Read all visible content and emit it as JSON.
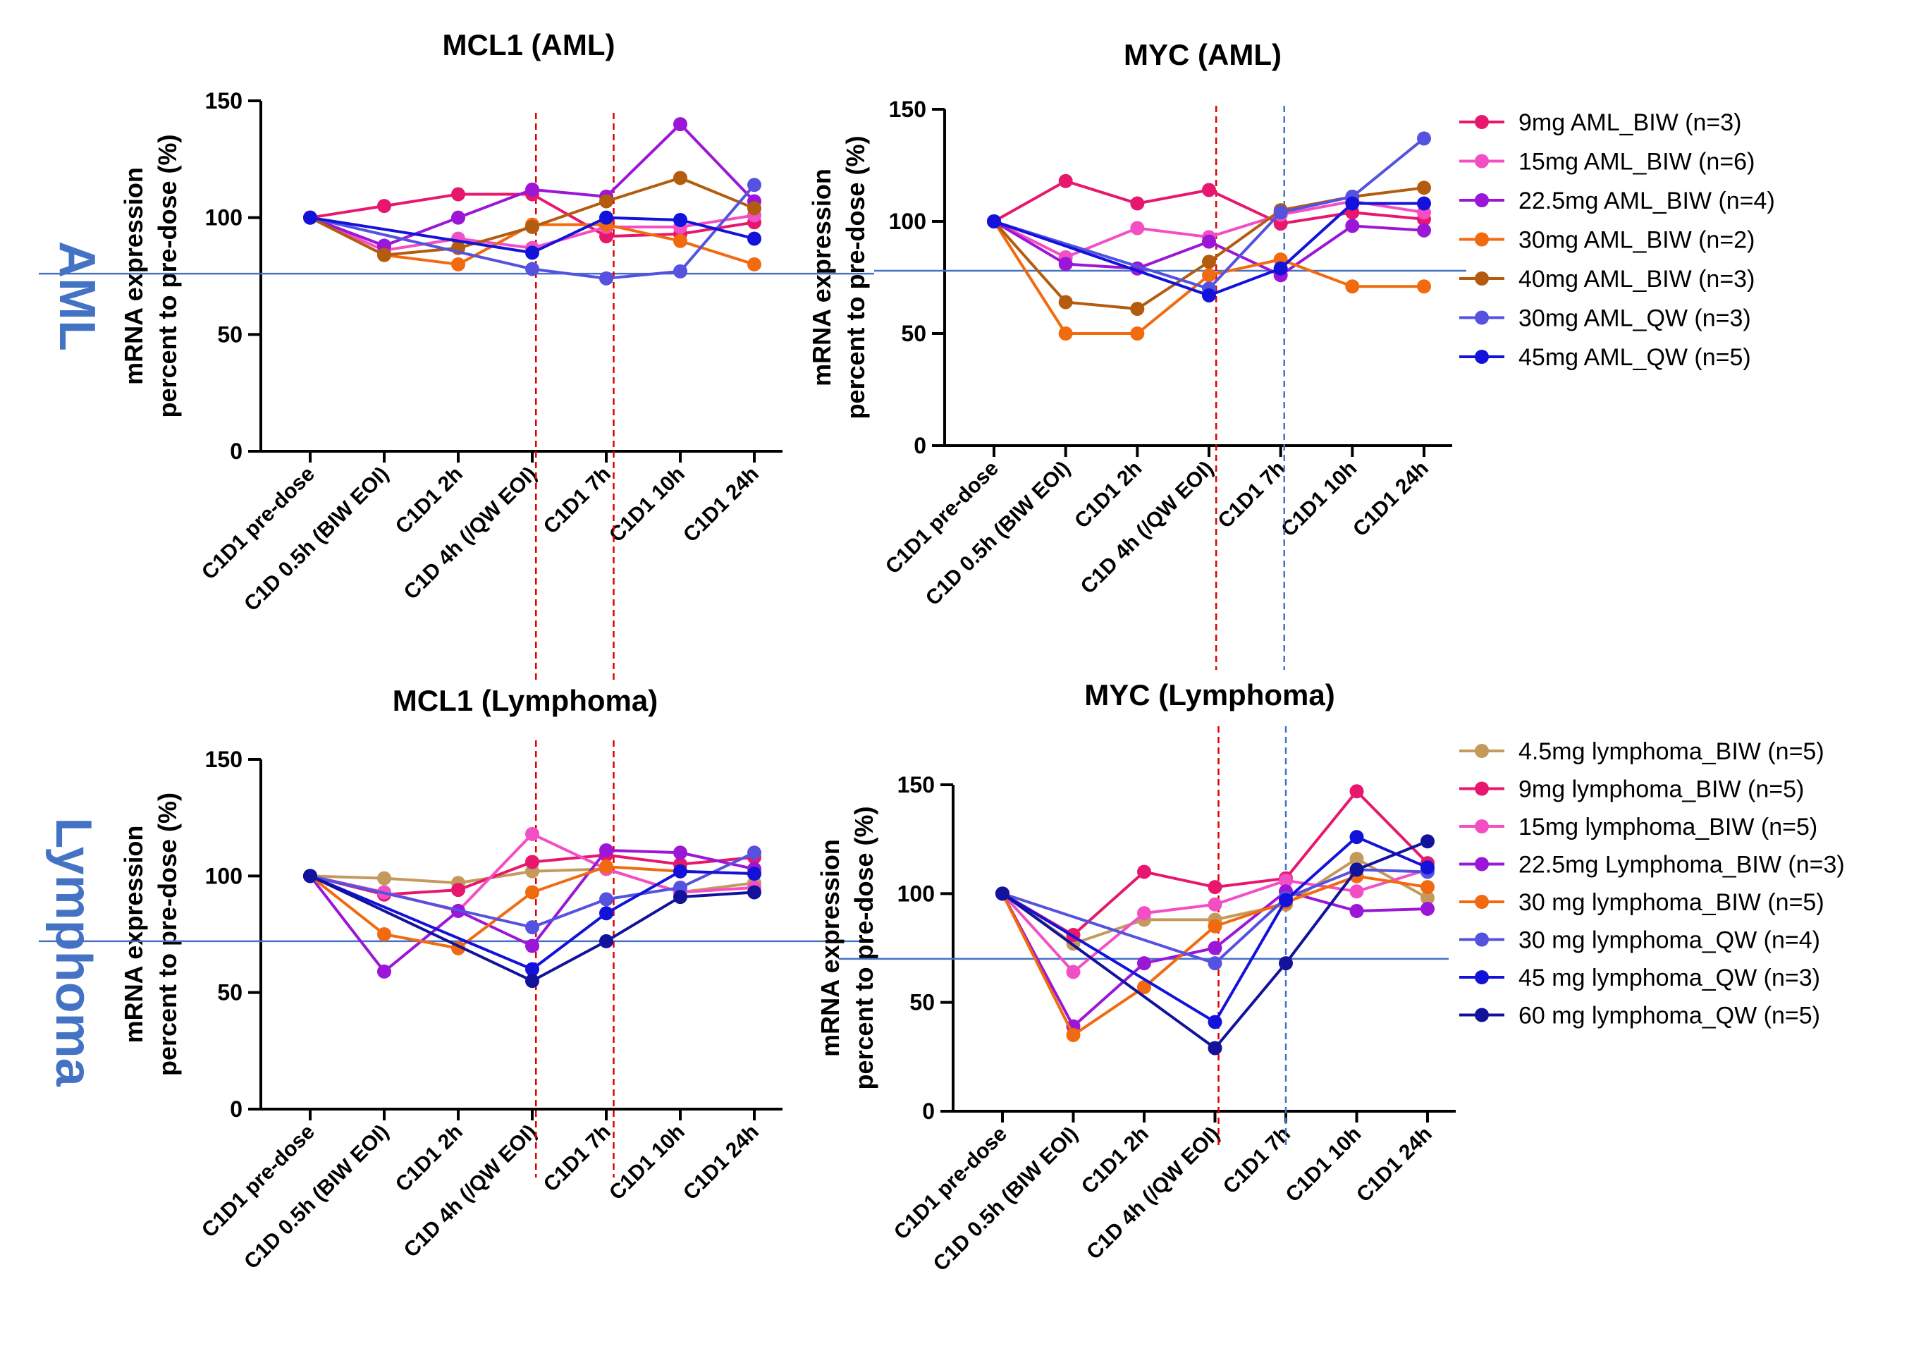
{
  "side_labels": {
    "top": "AML",
    "bottom": "Lymphoma"
  },
  "legend_aml": [
    {
      "name": "9mg AML_BIW (n=3)",
      "color": "#E8176E"
    },
    {
      "name": "15mg AML_BIW (n=6)",
      "color": "#F24FC4"
    },
    {
      "name": "22.5mg AML_BIW (n=4)",
      "color": "#9B16D6"
    },
    {
      "name": "30mg AML_BIW (n=2)",
      "color": "#F26A0F"
    },
    {
      "name": "40mg AML_BIW (n=3)",
      "color": "#B35C0F"
    },
    {
      "name": "30mg AML_QW (n=3)",
      "color": "#5552E0"
    },
    {
      "name": "45mg AML_QW (n=5)",
      "color": "#1212DB"
    }
  ],
  "legend_lymphoma": [
    {
      "name": "4.5mg lymphoma_BIW  (n=5)",
      "color": "#C49A5C"
    },
    {
      "name": "9mg lymphoma_BIW  (n=5)",
      "color": "#E8176E"
    },
    {
      "name": "15mg lymphoma_BIW   (n=5)",
      "color": "#F24FC4"
    },
    {
      "name": "22.5mg Lymphoma_BIW (n=3)",
      "color": "#9B16D6"
    },
    {
      "name": "30 mg lymphoma_BIW  (n=5)",
      "color": "#F26A0F"
    },
    {
      "name": "30 mg lymphoma_QW (n=4)",
      "color": "#5552E0"
    },
    {
      "name": "45 mg lymphoma_QW (n=3)",
      "color": "#1212DB"
    },
    {
      "name": "60 mg lymphoma_QW (n=5)",
      "color": "#12129A"
    }
  ],
  "chart_data": [
    {
      "type": "line",
      "title": "MCL1 (AML)",
      "ylabel_line1": "mRNA expression",
      "ylabel_line2": "percent to pre-dose (%)",
      "ylim": [
        0,
        150
      ],
      "yticks": [
        0,
        50,
        100,
        150
      ],
      "categories": [
        "C1D1 pre-dose",
        "C1D 0.5h (BIW EOI)",
        "C1D1 2h",
        "C1D 4h (/QW EOI)",
        "C1D1 7h",
        "C1D1 10h",
        "C1D1 24h"
      ],
      "reference_hline": 76,
      "vlines": [
        {
          "at": 3.05,
          "color": "#E00000"
        },
        {
          "at": 4.1,
          "color": "#E00000"
        }
      ],
      "series": [
        {
          "name": "9mg AML_BIW (n=3)",
          "color": "#E8176E",
          "values": [
            100,
            105,
            110,
            110,
            92,
            93,
            98
          ]
        },
        {
          "name": "15mg AML_BIW (n=6)",
          "color": "#F24FC4",
          "values": [
            100,
            86,
            91,
            87,
            96,
            96,
            101
          ]
        },
        {
          "name": "22.5mg AML_BIW (n=4)",
          "color": "#9B16D6",
          "values": [
            100,
            88,
            100,
            112,
            109,
            140,
            107
          ]
        },
        {
          "name": "30mg AML_BIW (n=2)",
          "color": "#F26A0F",
          "values": [
            100,
            84,
            80,
            97,
            97,
            90,
            80
          ]
        },
        {
          "name": "40mg AML_BIW (n=3)",
          "color": "#B35C0F",
          "values": [
            100,
            84,
            87,
            96,
            107,
            117,
            104
          ]
        },
        {
          "name": "30mg AML_QW (n=3)",
          "color": "#5552E0",
          "values": [
            100,
            null,
            null,
            78,
            74,
            77,
            114
          ]
        },
        {
          "name": "45mg AML_QW (n=5)",
          "color": "#1212DB",
          "values": [
            100,
            null,
            null,
            85,
            100,
            99,
            91
          ]
        }
      ]
    },
    {
      "type": "line",
      "title": "MYC (AML)",
      "ylabel_line1": "mRNA expression",
      "ylabel_line2": "percent to pre-dose (%)",
      "ylim": [
        0,
        150
      ],
      "yticks": [
        0,
        50,
        100,
        150
      ],
      "categories": [
        "C1D1 pre-dose",
        "C1D 0.5h (BIW EOI)",
        "C1D1 2h",
        "C1D 4h (/QW EOI)",
        "C1D1 7h",
        "C1D1 10h",
        "C1D1 24h"
      ],
      "reference_hline": 78,
      "vlines": [
        {
          "at": 3.1,
          "color": "#E00000"
        },
        {
          "at": 4.05,
          "color": "#4472C4"
        }
      ],
      "series": [
        {
          "name": "9mg AML_BIW (n=3)",
          "color": "#E8176E",
          "values": [
            100,
            118,
            108,
            114,
            99,
            104,
            101
          ]
        },
        {
          "name": "15mg AML_BIW (n=6)",
          "color": "#F24FC4",
          "values": [
            100,
            84,
            97,
            93,
            103,
            109,
            104
          ]
        },
        {
          "name": "22.5mg AML_BIW (n=4)",
          "color": "#9B16D6",
          "values": [
            100,
            81,
            79,
            91,
            76,
            98,
            96
          ]
        },
        {
          "name": "30mg AML_BIW (n=2)",
          "color": "#F26A0F",
          "values": [
            100,
            50,
            50,
            76,
            83,
            71,
            71
          ]
        },
        {
          "name": "40mg AML_BIW (n=3)",
          "color": "#B35C0F",
          "values": [
            100,
            64,
            61,
            82,
            105,
            111,
            115
          ]
        },
        {
          "name": "30mg AML_QW (n=3)",
          "color": "#5552E0",
          "values": [
            100,
            null,
            null,
            70,
            104,
            111,
            137
          ]
        },
        {
          "name": "45mg AML_QW (n=5)",
          "color": "#1212DB",
          "values": [
            100,
            null,
            null,
            67,
            79,
            108,
            108
          ]
        }
      ]
    },
    {
      "type": "line",
      "title": "MCL1 (Lymphoma)",
      "ylabel_line1": "mRNA expression",
      "ylabel_line2": "percent to pre-dose (%)",
      "ylim": [
        0,
        150
      ],
      "yticks": [
        0,
        50,
        100,
        150
      ],
      "categories": [
        "C1D1 pre-dose",
        "C1D 0.5h (BIW EOI)",
        "C1D1 2h",
        "C1D 4h (/QW EOI)",
        "C1D1 7h",
        "C1D1 10h",
        "C1D1 24h"
      ],
      "reference_hline": 72,
      "vlines": [
        {
          "at": 3.05,
          "color": "#E00000"
        },
        {
          "at": 4.1,
          "color": "#E00000"
        }
      ],
      "series": [
        {
          "name": "4.5mg lymphoma_BIW  (n=5)",
          "color": "#C49A5C",
          "values": [
            100,
            99,
            97,
            102,
            103,
            93,
            97
          ]
        },
        {
          "name": "9mg lymphoma_BIW  (n=5)",
          "color": "#E8176E",
          "values": [
            100,
            92,
            94,
            106,
            109,
            105,
            108
          ]
        },
        {
          "name": "15mg lymphoma_BIW   (n=5)",
          "color": "#F24FC4",
          "values": [
            100,
            93,
            85,
            118,
            103,
            93,
            95
          ]
        },
        {
          "name": "22.5mg Lymphoma_BIW (n=3)",
          "color": "#9B16D6",
          "values": [
            100,
            59,
            85,
            70,
            111,
            110,
            103
          ]
        },
        {
          "name": "30 mg lymphoma_BIW  (n=5)",
          "color": "#F26A0F",
          "values": [
            100,
            75,
            69,
            93,
            104,
            102,
            101
          ]
        },
        {
          "name": "30 mg lymphoma_QW (n=4)",
          "color": "#5552E0",
          "values": [
            100,
            null,
            null,
            78,
            90,
            95,
            110
          ]
        },
        {
          "name": "45 mg lymphoma_QW (n=3)",
          "color": "#1212DB",
          "values": [
            100,
            null,
            null,
            60,
            84,
            102,
            101
          ]
        },
        {
          "name": "60 mg lymphoma_QW (n=5)",
          "color": "#12129A",
          "values": [
            100,
            null,
            null,
            55,
            72,
            91,
            93
          ]
        }
      ]
    },
    {
      "type": "line",
      "title": "MYC (Lymphoma)",
      "ylabel_line1": "mRNA expression",
      "ylabel_line2": "percent to pre-dose (%)",
      "ylim": [
        0,
        150
      ],
      "yticks": [
        0,
        50,
        100,
        150
      ],
      "categories": [
        "C1D1 pre-dose",
        "C1D 0.5h (BIW EOI)",
        "C1D1 2h",
        "C1D 4h (/QW EOI)",
        "C1D1 7h",
        "C1D1 10h",
        "C1D1 24h"
      ],
      "reference_hline": 70,
      "vlines": [
        {
          "at": 3.05,
          "color": "#E00000"
        },
        {
          "at": 4.0,
          "color": "#4472C4"
        }
      ],
      "series": [
        {
          "name": "4.5mg lymphoma_BIW  (n=5)",
          "color": "#C49A5C",
          "values": [
            100,
            77,
            88,
            88,
            95,
            116,
            98
          ]
        },
        {
          "name": "9mg lymphoma_BIW  (n=5)",
          "color": "#E8176E",
          "values": [
            100,
            81,
            110,
            103,
            107,
            147,
            114
          ]
        },
        {
          "name": "15mg lymphoma_BIW   (n=5)",
          "color": "#F24FC4",
          "values": [
            100,
            64,
            91,
            95,
            106,
            101,
            111
          ]
        },
        {
          "name": "22.5mg Lymphoma_BIW (n=3)",
          "color": "#9B16D6",
          "values": [
            100,
            39,
            68,
            75,
            101,
            92,
            93
          ]
        },
        {
          "name": "30 mg lymphoma_BIW  (n=5)",
          "color": "#F26A0F",
          "values": [
            100,
            35,
            57,
            85,
            96,
            108,
            103
          ]
        },
        {
          "name": "30 mg lymphoma_QW (n=4)",
          "color": "#5552E0",
          "values": [
            100,
            null,
            null,
            68,
            98,
            111,
            110
          ]
        },
        {
          "name": "45 mg lymphoma_QW (n=3)",
          "color": "#1212DB",
          "values": [
            100,
            null,
            null,
            41,
            97,
            126,
            112
          ]
        },
        {
          "name": "60 mg lymphoma_QW (n=5)",
          "color": "#12129A",
          "values": [
            100,
            null,
            null,
            29,
            68,
            111,
            124
          ]
        }
      ]
    }
  ]
}
